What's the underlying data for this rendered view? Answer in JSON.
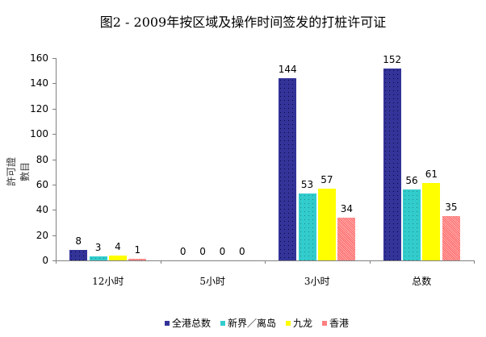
{
  "chart_data": {
    "type": "bar",
    "title": "图2 - 2009年按区域及操作时间签发的打桩许可证",
    "xlabel": "",
    "ylabel": "許可證數目",
    "categories": [
      "12小时",
      "5小时",
      "3小时",
      "总数"
    ],
    "series": [
      {
        "name": "全港总数",
        "color": "#333399",
        "values": [
          8,
          0,
          144,
          152
        ]
      },
      {
        "name": "新界／离岛",
        "color": "#33CCCC",
        "values": [
          3,
          0,
          53,
          56
        ]
      },
      {
        "name": "九龙",
        "color": "#FFFF00",
        "values": [
          4,
          0,
          57,
          61
        ]
      },
      {
        "name": "香港",
        "color": "#FF8080",
        "values": [
          1,
          0,
          34,
          35
        ]
      }
    ],
    "ylim": [
      0,
      160
    ],
    "yticks": [
      0,
      20,
      40,
      60,
      80,
      100,
      120,
      140,
      160
    ],
    "grid": false,
    "legend_position": "bottom",
    "data_labels": true
  }
}
